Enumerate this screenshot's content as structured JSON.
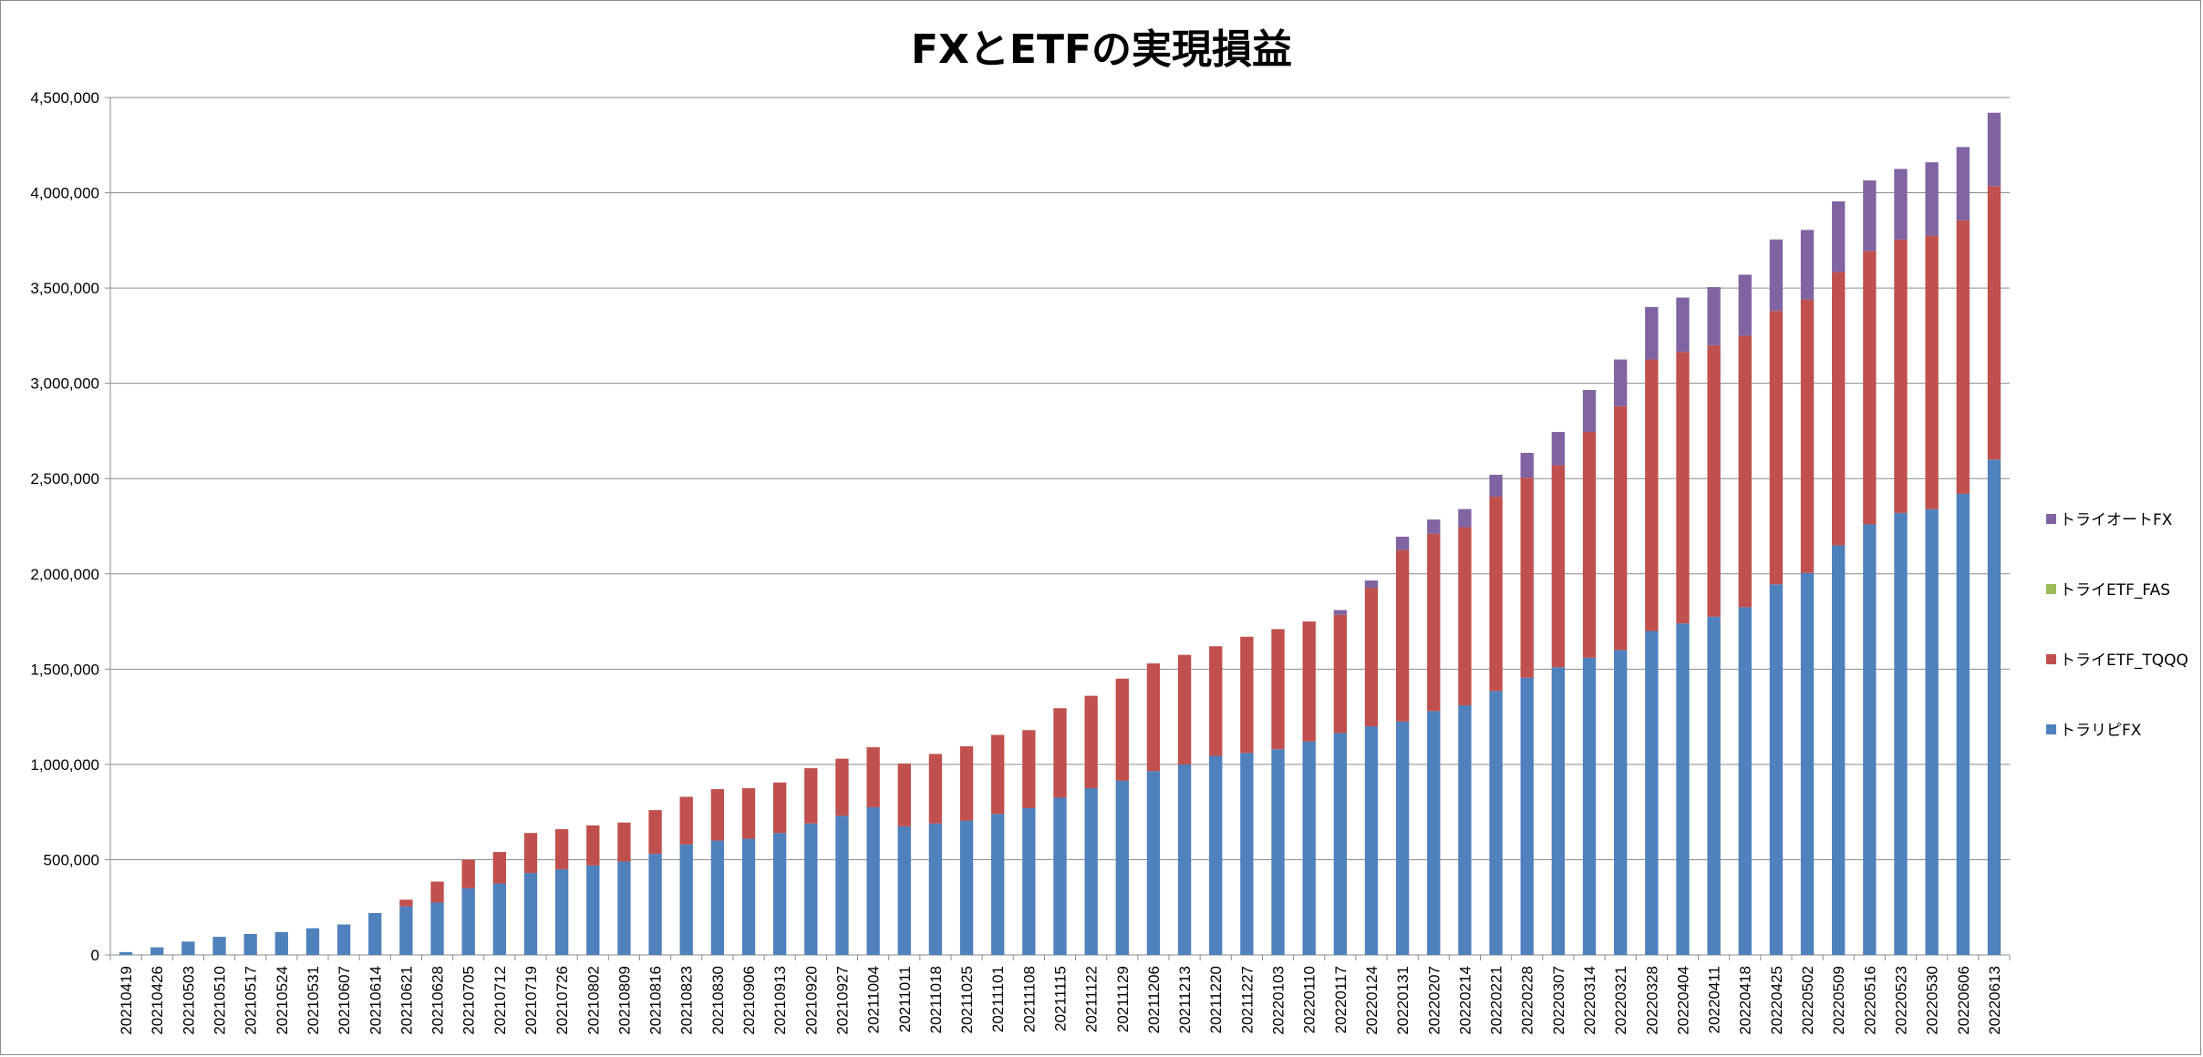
{
  "chart_data": {
    "type": "bar",
    "stacked": true,
    "title": "FXとETFの実現損益",
    "categories": [
      "20210419",
      "20210426",
      "20210503",
      "20210510",
      "20210517",
      "20210524",
      "20210531",
      "20210607",
      "20210614",
      "20210621",
      "20210628",
      "20210705",
      "20210712",
      "20210719",
      "20210726",
      "20210802",
      "20210809",
      "20210816",
      "20210823",
      "20210830",
      "20210906",
      "20210913",
      "20210920",
      "20210927",
      "20211004",
      "20211011",
      "20211018",
      "20211025",
      "20211101",
      "20211108",
      "20211115",
      "20211122",
      "20211129",
      "20211206",
      "20211213",
      "20211220",
      "20211227",
      "20220103",
      "20220110",
      "20220117",
      "20220124",
      "20220131",
      "20220207",
      "20220214",
      "20220221",
      "20220228",
      "20220307",
      "20220314",
      "20220321",
      "20220328",
      "20220404",
      "20220411",
      "20220418",
      "20220425",
      "20220502",
      "20220509",
      "20220516",
      "20220523",
      "20220530",
      "20220606",
      "20220613"
    ],
    "ylim": [
      0,
      4500000
    ],
    "ytick_step": 500000,
    "ytick_labels": [
      "0",
      "500,000",
      "1,000,000",
      "1,500,000",
      "2,000,000",
      "2,500,000",
      "3,000,000",
      "3,500,000",
      "4,000,000",
      "4,500,000"
    ],
    "grid": true,
    "legend_position": "right",
    "series": [
      {
        "name": "トラリピFX",
        "color": "#4f81bd",
        "values": [
          15000,
          40000,
          70000,
          95000,
          110000,
          120000,
          140000,
          160000,
          220000,
          255000,
          275000,
          350000,
          375000,
          430000,
          450000,
          470000,
          490000,
          530000,
          580000,
          600000,
          610000,
          640000,
          690000,
          730000,
          775000,
          675000,
          690000,
          705000,
          740000,
          770000,
          825000,
          875000,
          915000,
          965000,
          1000000,
          1045000,
          1060000,
          1080000,
          1120000,
          1165000,
          1200000,
          1225000,
          1280000,
          1310000,
          1385000,
          1455000,
          1510000,
          1560000,
          1600000,
          1700000,
          1740000,
          1775000,
          1825000,
          1945000,
          2005000,
          2150000,
          2260000,
          2320000,
          2340000,
          2420000,
          2600000
        ]
      },
      {
        "name": "トライETF_TQQQ",
        "color": "#c0504d",
        "values": [
          0,
          0,
          0,
          0,
          0,
          0,
          0,
          0,
          0,
          35000,
          110000,
          150000,
          165000,
          210000,
          210000,
          210000,
          205000,
          230000,
          250000,
          270000,
          265000,
          265000,
          290000,
          300000,
          315000,
          330000,
          365000,
          390000,
          415000,
          410000,
          470000,
          485000,
          535000,
          565000,
          575000,
          575000,
          610000,
          630000,
          630000,
          620000,
          725000,
          900000,
          930000,
          935000,
          1020000,
          1050000,
          1060000,
          1185000,
          1280000,
          1425000,
          1425000,
          1425000,
          1425000,
          1435000,
          1435000,
          1435000,
          1435000,
          1435000,
          1435000,
          1435000,
          1435000
        ]
      },
      {
        "name": "トライETF_FAS",
        "color": "#9bbb59",
        "values": [
          0,
          0,
          0,
          0,
          0,
          0,
          0,
          0,
          0,
          0,
          0,
          0,
          0,
          0,
          0,
          0,
          0,
          0,
          0,
          0,
          0,
          0,
          0,
          0,
          0,
          0,
          0,
          0,
          0,
          0,
          0,
          0,
          0,
          0,
          0,
          0,
          0,
          0,
          0,
          0,
          0,
          0,
          0,
          0,
          0,
          0,
          0,
          0,
          0,
          0,
          0,
          0,
          0,
          0,
          0,
          0,
          0,
          0,
          0,
          0,
          0
        ]
      },
      {
        "name": "トライオートFX",
        "color": "#8064a2",
        "values": [
          0,
          0,
          0,
          0,
          0,
          0,
          0,
          0,
          0,
          0,
          0,
          0,
          0,
          0,
          0,
          0,
          0,
          0,
          0,
          0,
          0,
          0,
          0,
          0,
          0,
          0,
          0,
          0,
          0,
          0,
          0,
          0,
          0,
          0,
          0,
          0,
          0,
          0,
          0,
          25000,
          40000,
          70000,
          75000,
          95000,
          115000,
          130000,
          175000,
          220000,
          245000,
          275000,
          285000,
          305000,
          320000,
          375000,
          365000,
          370000,
          370000,
          370000,
          385000,
          385000,
          385000
        ]
      }
    ]
  }
}
